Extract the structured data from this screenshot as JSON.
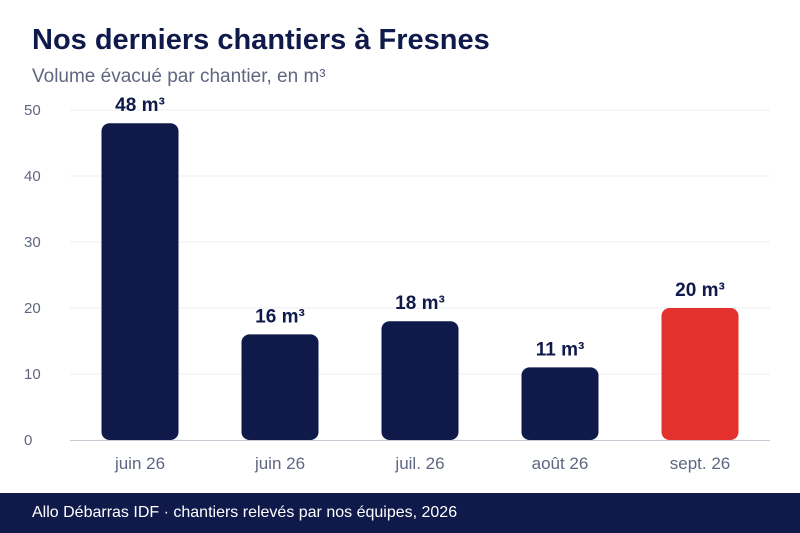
{
  "chart_data": {
    "type": "bar",
    "title": "Nos derniers chantiers à Fresnes",
    "subtitle": "Volume évacué par chantier, en m³",
    "categories": [
      "juin 26",
      "juin 26",
      "juil. 26",
      "août 26",
      "sept. 26"
    ],
    "values": [
      48,
      16,
      18,
      11,
      20
    ],
    "data_labels": [
      "48 m³",
      "16 m³",
      "18 m³",
      "11 m³",
      "20 m³"
    ],
    "yticks": [
      0,
      10,
      20,
      30,
      40,
      50
    ],
    "ylim": [
      0,
      50
    ],
    "xlabel": "",
    "ylabel": "",
    "grid": true,
    "highlight_index": 4,
    "colors": {
      "bar": "#0f1a4b",
      "highlight": "#e3312d",
      "grid": "#ececf2",
      "axis": "#c8cad6",
      "tick_text": "#5f6680",
      "label_text": "#0f1a4b"
    }
  },
  "footer": {
    "source": "Allo Débarras IDF · chantiers relevés par nos équipes, 2026"
  }
}
